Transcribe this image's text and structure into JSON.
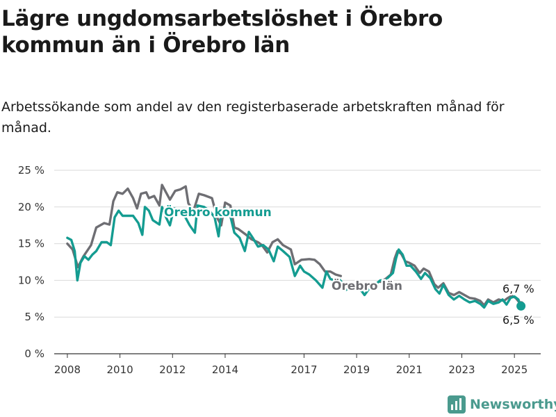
{
  "title": "Lägre ungdomsarbetslöshet i Örebro kommun än i Örebro län",
  "subtitle": "Arbetssökande som andel av den registerbaserade arbetskraften månad för månad.",
  "brand": {
    "name": "Newsworthy",
    "icon": "bar-chart-logo-icon"
  },
  "colors": {
    "kommun": "#149c91",
    "lan": "#6e6e73",
    "grid": "#d9d9d9",
    "text": "#1a1a1a"
  },
  "chart_data": {
    "type": "line",
    "ylim": [
      0,
      25
    ],
    "yticks": [
      0,
      5,
      10,
      15,
      20,
      25
    ],
    "ytick_labels": [
      "0 %",
      "5 %",
      "10 %",
      "15 %",
      "20 %",
      "25 %"
    ],
    "xlim": [
      2007.5,
      2026.0
    ],
    "xticks": [
      2008,
      2010,
      2012,
      2014,
      2017,
      2019,
      2021,
      2023,
      2025
    ],
    "xtick_labels": [
      "2008",
      "2010",
      "2012",
      "2014",
      "2017",
      "2019",
      "2021",
      "2023",
      "2025"
    ],
    "grid": true,
    "series": [
      {
        "name": "Örebro län",
        "color_key": "lan",
        "end_label": "6,7 %",
        "points": [
          [
            2008.0,
            15.0
          ],
          [
            2008.2,
            14.2
          ],
          [
            2008.4,
            11.8
          ],
          [
            2008.6,
            13.2
          ],
          [
            2008.9,
            14.8
          ],
          [
            2009.1,
            17.2
          ],
          [
            2009.4,
            17.8
          ],
          [
            2009.6,
            17.6
          ],
          [
            2009.75,
            20.8
          ],
          [
            2009.9,
            22.0
          ],
          [
            2010.1,
            21.8
          ],
          [
            2010.3,
            22.5
          ],
          [
            2010.5,
            21.2
          ],
          [
            2010.65,
            19.8
          ],
          [
            2010.8,
            21.8
          ],
          [
            2011.0,
            22.0
          ],
          [
            2011.1,
            21.2
          ],
          [
            2011.3,
            21.5
          ],
          [
            2011.5,
            20.2
          ],
          [
            2011.6,
            23.0
          ],
          [
            2011.9,
            21.0
          ],
          [
            2012.1,
            22.2
          ],
          [
            2012.3,
            22.4
          ],
          [
            2012.5,
            22.8
          ],
          [
            2012.6,
            20.5
          ],
          [
            2012.8,
            19.5
          ],
          [
            2013.0,
            21.8
          ],
          [
            2013.2,
            21.6
          ],
          [
            2013.5,
            21.2
          ],
          [
            2013.7,
            18.5
          ],
          [
            2013.85,
            17.5
          ],
          [
            2014.0,
            20.6
          ],
          [
            2014.2,
            20.2
          ],
          [
            2014.35,
            17.2
          ],
          [
            2014.5,
            17.0
          ],
          [
            2014.8,
            16.2
          ],
          [
            2015.0,
            15.6
          ],
          [
            2015.25,
            15.2
          ],
          [
            2015.4,
            14.8
          ],
          [
            2015.6,
            13.8
          ],
          [
            2015.8,
            15.2
          ],
          [
            2016.0,
            15.6
          ],
          [
            2016.2,
            14.8
          ],
          [
            2016.5,
            14.2
          ],
          [
            2016.65,
            12.2
          ],
          [
            2016.9,
            12.8
          ],
          [
            2017.2,
            12.9
          ],
          [
            2017.4,
            12.8
          ],
          [
            2017.6,
            12.2
          ],
          [
            2017.8,
            11.2
          ],
          [
            2018.0,
            11.2
          ],
          [
            2018.2,
            10.8
          ],
          [
            2018.4,
            10.6
          ]
        ]
      },
      {
        "name": "Örebro kommun",
        "color_key": "kommun",
        "end_label": "6,5 %",
        "points": [
          [
            2008.0,
            15.8
          ],
          [
            2008.15,
            15.5
          ],
          [
            2008.28,
            14.0
          ],
          [
            2008.38,
            10.0
          ],
          [
            2008.5,
            12.4
          ],
          [
            2008.65,
            13.3
          ],
          [
            2008.8,
            12.8
          ],
          [
            2008.95,
            13.5
          ],
          [
            2009.1,
            14.0
          ],
          [
            2009.3,
            15.2
          ],
          [
            2009.5,
            15.2
          ],
          [
            2009.65,
            14.8
          ],
          [
            2009.8,
            18.6
          ],
          [
            2009.95,
            19.5
          ],
          [
            2010.1,
            18.8
          ],
          [
            2010.3,
            18.8
          ],
          [
            2010.5,
            18.8
          ],
          [
            2010.7,
            17.8
          ],
          [
            2010.85,
            16.2
          ],
          [
            2010.95,
            20.0
          ],
          [
            2011.1,
            19.5
          ],
          [
            2011.25,
            18.2
          ],
          [
            2011.5,
            17.6
          ],
          [
            2011.6,
            20.0
          ],
          [
            2011.75,
            18.6
          ],
          [
            2011.9,
            17.5
          ],
          [
            2012.05,
            19.8
          ],
          [
            2012.25,
            19.6
          ],
          [
            2012.5,
            18.5
          ],
          [
            2012.65,
            17.5
          ],
          [
            2012.85,
            16.5
          ],
          [
            2012.95,
            20.2
          ],
          [
            2013.2,
            20.0
          ],
          [
            2013.4,
            19.5
          ],
          [
            2013.6,
            18.6
          ],
          [
            2013.75,
            16.0
          ],
          [
            2013.85,
            19.2
          ],
          [
            2014.0,
            19.8
          ],
          [
            2014.15,
            19.5
          ],
          [
            2014.35,
            16.5
          ],
          [
            2014.55,
            15.8
          ],
          [
            2014.75,
            14.0
          ],
          [
            2014.9,
            16.6
          ],
          [
            2015.05,
            15.8
          ],
          [
            2015.25,
            14.6
          ],
          [
            2015.45,
            14.8
          ],
          [
            2015.65,
            14.2
          ],
          [
            2015.85,
            12.6
          ],
          [
            2016.0,
            14.6
          ],
          [
            2016.2,
            14.0
          ],
          [
            2016.45,
            13.2
          ],
          [
            2016.65,
            10.6
          ],
          [
            2016.85,
            12.0
          ],
          [
            2017.0,
            11.2
          ],
          [
            2017.2,
            10.8
          ],
          [
            2017.45,
            10.0
          ],
          [
            2017.7,
            9.0
          ],
          [
            2017.85,
            11.2
          ],
          [
            2018.0,
            10.2
          ],
          [
            2018.15,
            10.0
          ],
          [
            2018.35,
            10.1
          ],
          [
            2018.5,
            9.5
          ],
          [
            2018.6,
            8.7
          ],
          [
            2018.8,
            9.3
          ],
          [
            2019.0,
            9.0
          ],
          [
            2019.2,
            8.5
          ],
          [
            2019.3,
            8.0
          ],
          [
            2019.5,
            9.0
          ],
          [
            2019.7,
            9.4
          ],
          [
            2019.9,
            10.0
          ],
          [
            2020.1,
            10.0
          ],
          [
            2020.2,
            10.4
          ],
          [
            2020.38,
            11.0
          ],
          [
            2020.5,
            13.0
          ],
          [
            2020.6,
            14.2
          ],
          [
            2020.75,
            13.5
          ],
          [
            2020.9,
            12.0
          ],
          [
            2021.05,
            12.0
          ],
          [
            2021.25,
            11.2
          ],
          [
            2021.45,
            10.2
          ],
          [
            2021.6,
            11.0
          ],
          [
            2021.8,
            10.3
          ],
          [
            2022.0,
            8.8
          ],
          [
            2022.15,
            8.2
          ],
          [
            2022.3,
            9.4
          ],
          [
            2022.5,
            8.0
          ],
          [
            2022.7,
            7.4
          ],
          [
            2022.9,
            7.9
          ],
          [
            2023.1,
            7.4
          ],
          [
            2023.3,
            7.0
          ],
          [
            2023.5,
            7.2
          ],
          [
            2023.7,
            6.8
          ],
          [
            2023.85,
            6.3
          ],
          [
            2024.0,
            7.2
          ],
          [
            2024.2,
            6.8
          ],
          [
            2024.4,
            7.0
          ],
          [
            2024.55,
            7.4
          ],
          [
            2024.7,
            6.7
          ],
          [
            2024.85,
            7.6
          ],
          [
            2025.0,
            7.8
          ],
          [
            2025.15,
            7.4
          ],
          [
            2025.25,
            6.5
          ]
        ]
      },
      {
        "name": "Örebro län (2018–2025)",
        "color_key": "lan",
        "points": [
          [
            2019.9,
            9.8
          ],
          [
            2020.1,
            10.2
          ],
          [
            2020.3,
            10.8
          ],
          [
            2020.45,
            13.0
          ],
          [
            2020.55,
            14.0
          ],
          [
            2020.7,
            13.6
          ],
          [
            2020.85,
            12.6
          ],
          [
            2021.0,
            12.4
          ],
          [
            2021.2,
            12.0
          ],
          [
            2021.4,
            11.0
          ],
          [
            2021.55,
            11.6
          ],
          [
            2021.75,
            11.2
          ],
          [
            2021.95,
            9.5
          ],
          [
            2022.1,
            9.0
          ],
          [
            2022.3,
            9.6
          ],
          [
            2022.5,
            8.3
          ],
          [
            2022.7,
            8.0
          ],
          [
            2022.9,
            8.4
          ],
          [
            2023.1,
            8.0
          ],
          [
            2023.3,
            7.6
          ],
          [
            2023.5,
            7.5
          ],
          [
            2023.7,
            7.2
          ],
          [
            2023.85,
            6.6
          ],
          [
            2024.0,
            7.4
          ],
          [
            2024.2,
            7.0
          ],
          [
            2024.4,
            7.4
          ],
          [
            2024.6,
            7.2
          ],
          [
            2024.75,
            7.6
          ],
          [
            2024.9,
            7.9
          ],
          [
            2025.05,
            7.6
          ],
          [
            2025.25,
            6.7
          ]
        ]
      }
    ]
  }
}
